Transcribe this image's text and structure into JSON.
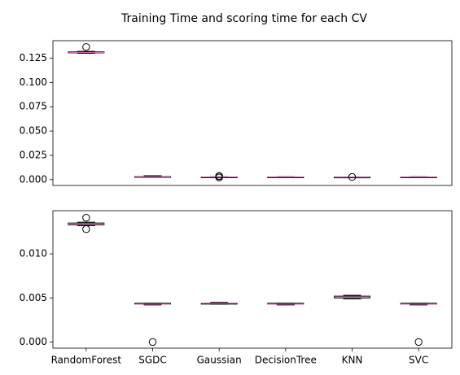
{
  "suptitle": "Training Time and scoring time for each CV",
  "chart_data": [
    {
      "type": "box",
      "categories": [
        "RandomForest",
        "SGDC",
        "Gaussian",
        "DecisionTree",
        "KNN",
        "SVC"
      ],
      "show_xticklabels": false,
      "ylim": [
        -0.006,
        0.143
      ],
      "yticks": [
        0.0,
        0.025,
        0.05,
        0.075,
        0.1,
        0.125
      ],
      "ytick_labels": [
        "0.000",
        "0.025",
        "0.050",
        "0.075",
        "0.100",
        "0.125"
      ],
      "boxes": [
        {
          "whislo": 0.13,
          "q1": 0.1305,
          "med": 0.131,
          "q3": 0.1315,
          "whishi": 0.132,
          "fliers": [
            0.1365
          ]
        },
        {
          "whislo": 0.0025,
          "q1": 0.0028,
          "med": 0.003,
          "q3": 0.0032,
          "whishi": 0.004,
          "fliers": []
        },
        {
          "whislo": 0.0025,
          "q1": 0.0026,
          "med": 0.0027,
          "q3": 0.0028,
          "whishi": 0.003,
          "fliers": [
            0.0022,
            0.0038,
            0.0035
          ]
        },
        {
          "whislo": 0.0025,
          "q1": 0.0026,
          "med": 0.0027,
          "q3": 0.0028,
          "whishi": 0.003,
          "fliers": []
        },
        {
          "whislo": 0.0024,
          "q1": 0.0025,
          "med": 0.0026,
          "q3": 0.0027,
          "whishi": 0.0028,
          "fliers": [
            0.0027
          ]
        },
        {
          "whislo": 0.0025,
          "q1": 0.0026,
          "med": 0.0027,
          "q3": 0.0028,
          "whishi": 0.003,
          "fliers": []
        }
      ]
    },
    {
      "type": "box",
      "categories": [
        "RandomForest",
        "SGDC",
        "Gaussian",
        "DecisionTree",
        "KNN",
        "SVC"
      ],
      "show_xticklabels": true,
      "ylim": [
        -0.0007,
        0.0149
      ],
      "yticks": [
        0.0,
        0.005,
        0.01
      ],
      "ytick_labels": [
        "0.000",
        "0.005",
        "0.010"
      ],
      "boxes": [
        {
          "whislo": 0.0132,
          "q1": 0.0133,
          "med": 0.0134,
          "q3": 0.0135,
          "whishi": 0.0136,
          "fliers": [
            0.0141,
            0.0128
          ]
        },
        {
          "whislo": 0.0042,
          "q1": 0.0043,
          "med": 0.0043,
          "q3": 0.0044,
          "whishi": 0.0044,
          "fliers": [
            0.0
          ]
        },
        {
          "whislo": 0.0043,
          "q1": 0.0043,
          "med": 0.0044,
          "q3": 0.0044,
          "whishi": 0.0045,
          "fliers": []
        },
        {
          "whislo": 0.0042,
          "q1": 0.0043,
          "med": 0.0043,
          "q3": 0.0044,
          "whishi": 0.0044,
          "fliers": []
        },
        {
          "whislo": 0.0049,
          "q1": 0.005,
          "med": 0.0051,
          "q3": 0.0052,
          "whishi": 0.0053,
          "fliers": []
        },
        {
          "whislo": 0.0042,
          "q1": 0.0043,
          "med": 0.0043,
          "q3": 0.0044,
          "whishi": 0.0044,
          "fliers": [
            0.0
          ]
        }
      ]
    }
  ],
  "colors": {
    "axes": "#000000",
    "box": "#000000",
    "median": "#e377c2",
    "flier": "#000000"
  }
}
